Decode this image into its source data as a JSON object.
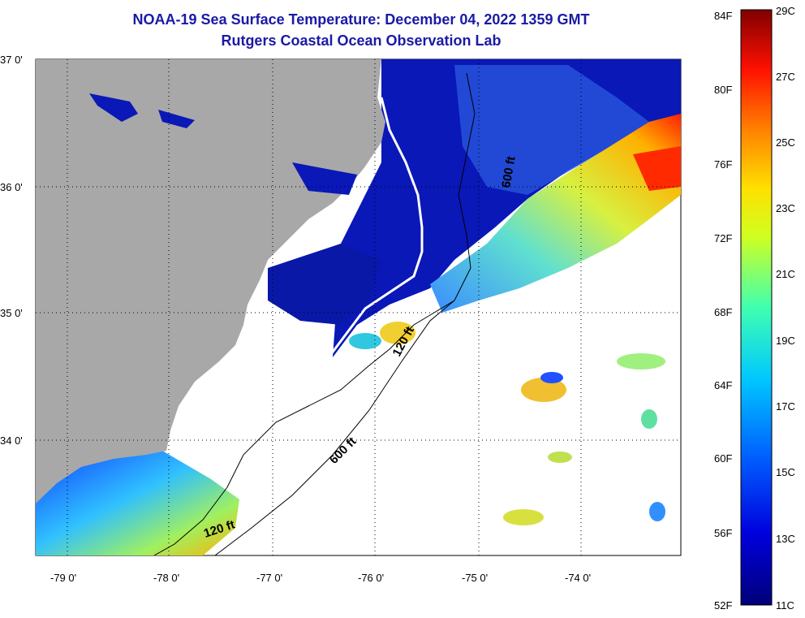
{
  "title": {
    "line1": "NOAA-19 Sea Surface Temperature:  December 04, 2022 1359 GMT",
    "line2": "Rutgers Coastal Ocean Observation Lab"
  },
  "axes": {
    "lat_labels": [
      "37 0'",
      "36 0'",
      "35 0'",
      "34 0'"
    ],
    "lon_labels": [
      "-79 0'",
      "-78 0'",
      "-77 0'",
      "-76 0'",
      "-75 0'",
      "-74 0'"
    ]
  },
  "contours": {
    "labels": [
      "600 ft",
      "120 ft",
      "600 ft",
      "120 ft"
    ]
  },
  "colorbar": {
    "fahrenheit": [
      "84F",
      "80F",
      "76F",
      "72F",
      "68F",
      "64F",
      "60F",
      "56F",
      "52F"
    ],
    "celsius": [
      "29C",
      "27C",
      "25C",
      "23C",
      "21C",
      "19C",
      "17C",
      "15C",
      "13C",
      "11C"
    ]
  },
  "colors": {
    "land": "#a8a8a8",
    "cold": "#000099",
    "title": "#1a1aa6"
  }
}
